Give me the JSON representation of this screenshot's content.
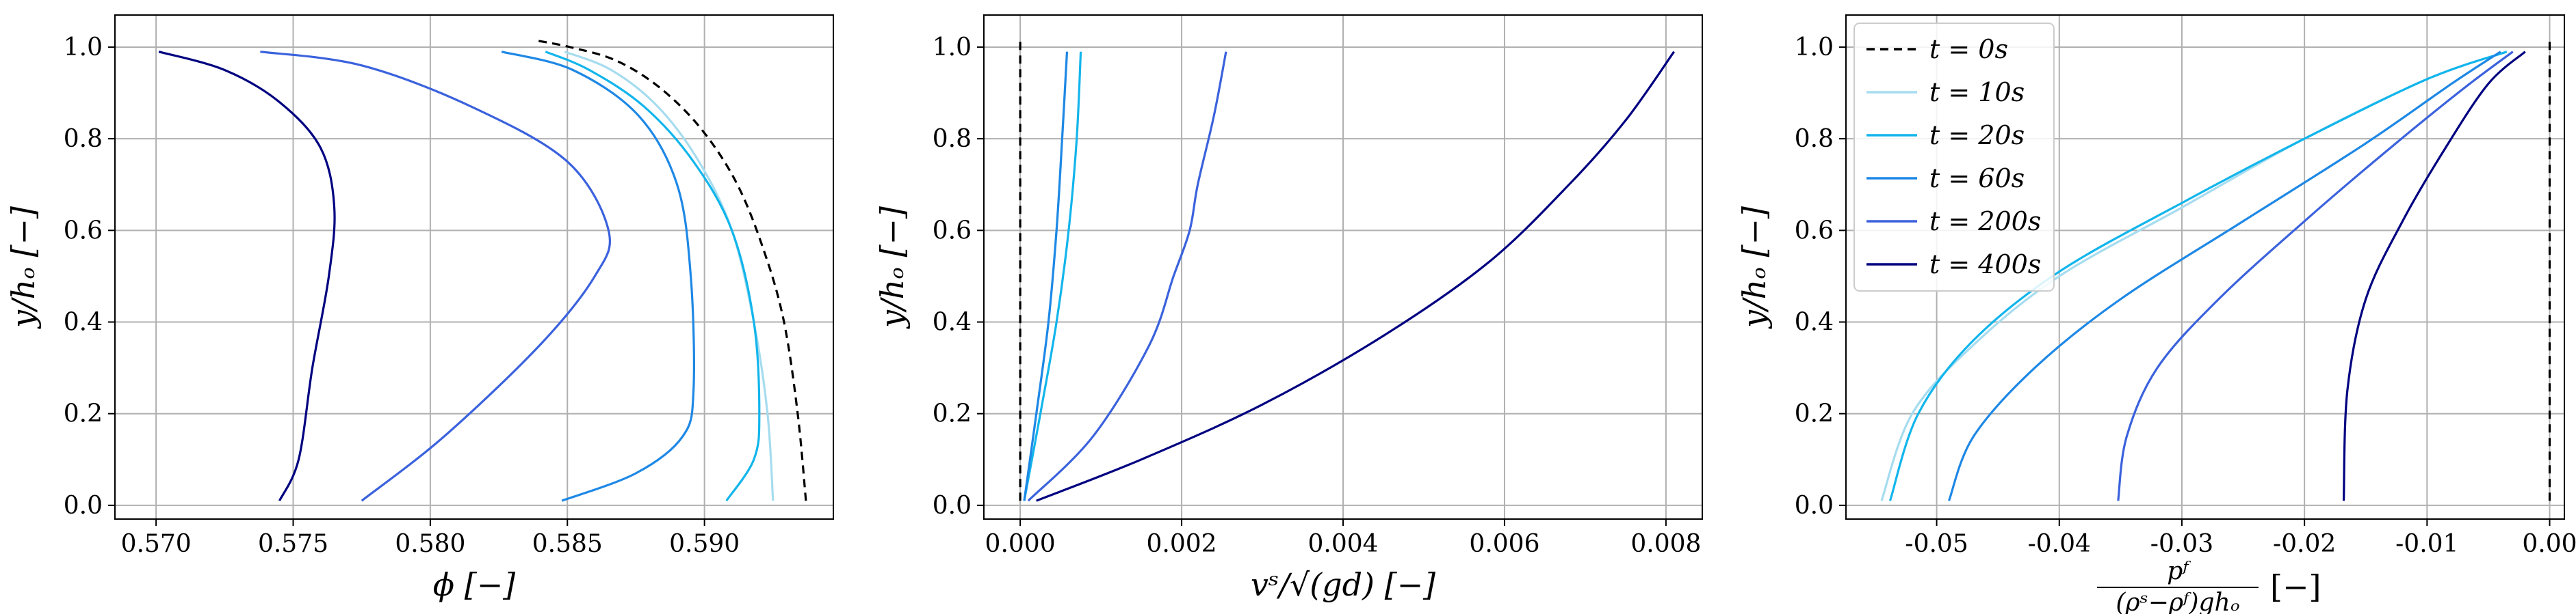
{
  "chart_data": [
    {
      "type": "line",
      "xlabel": "ϕ [−]",
      "ylabel": "y/hₒ [−]",
      "xlim": [
        0.5685,
        0.5947
      ],
      "ylim": [
        -0.03,
        1.07
      ],
      "xticks": [
        0.57,
        0.575,
        0.58,
        0.585,
        0.59
      ],
      "xtick_labels": [
        "0.570",
        "0.575",
        "0.580",
        "0.585",
        "0.590"
      ],
      "yticks": [
        0.0,
        0.2,
        0.4,
        0.6,
        0.8,
        1.0
      ],
      "ytick_labels": [
        "0.0",
        "0.2",
        "0.4",
        "0.6",
        "0.8",
        "1.0"
      ],
      "grid": true,
      "legend": "none",
      "series": [
        {
          "name": "t = 0s",
          "color": "#000000",
          "dashed": true,
          "x": [
            0.5937,
            0.5934,
            0.5929,
            0.5922,
            0.5912,
            0.5899,
            0.5884,
            0.5868,
            0.5851,
            0.5838
          ],
          "y": [
            0.01,
            0.2,
            0.4,
            0.55,
            0.7,
            0.82,
            0.91,
            0.97,
            1.0,
            1.015
          ]
        },
        {
          "name": "t = 10s",
          "color": "#a6dcef",
          "x": [
            0.5925,
            0.5923,
            0.5918,
            0.591,
            0.5898,
            0.5883,
            0.5866,
            0.5849
          ],
          "y": [
            0.01,
            0.2,
            0.4,
            0.6,
            0.75,
            0.87,
            0.95,
            0.99
          ]
        },
        {
          "name": "t = 20s",
          "color": "#12b5ec",
          "x": [
            0.5908,
            0.5918,
            0.592,
            0.5918,
            0.591,
            0.5896,
            0.5878,
            0.5858,
            0.5842
          ],
          "y": [
            0.01,
            0.1,
            0.2,
            0.4,
            0.6,
            0.75,
            0.87,
            0.95,
            0.99
          ]
        },
        {
          "name": "t = 60s",
          "color": "#1e88e5",
          "x": [
            0.5848,
            0.5875,
            0.5892,
            0.5896,
            0.5895,
            0.589,
            0.5876,
            0.5852,
            0.5826
          ],
          "y": [
            0.01,
            0.07,
            0.15,
            0.25,
            0.5,
            0.7,
            0.85,
            0.95,
            0.99
          ]
        },
        {
          "name": "t = 200s",
          "color": "#3b62dd",
          "x": [
            0.5775,
            0.5805,
            0.584,
            0.586,
            0.5865,
            0.585,
            0.5815,
            0.5775,
            0.5738
          ],
          "y": [
            0.01,
            0.15,
            0.35,
            0.5,
            0.6,
            0.75,
            0.87,
            0.96,
            0.99
          ]
        },
        {
          "name": "t = 400s",
          "color": "#000080",
          "x": [
            0.5745,
            0.5752,
            0.5757,
            0.5763,
            0.5765,
            0.576,
            0.5745,
            0.5725,
            0.5701
          ],
          "y": [
            0.01,
            0.1,
            0.3,
            0.5,
            0.65,
            0.78,
            0.88,
            0.95,
            0.99
          ]
        }
      ]
    },
    {
      "type": "line",
      "xlabel": "vˢ/√(gd) [−]",
      "ylabel": "y/hₒ [−]",
      "xlim": [
        -0.00045,
        0.00845
      ],
      "ylim": [
        -0.03,
        1.07
      ],
      "xticks": [
        0.0,
        0.002,
        0.004,
        0.006,
        0.008
      ],
      "xtick_labels": [
        "0.000",
        "0.002",
        "0.004",
        "0.006",
        "0.008"
      ],
      "yticks": [
        0.0,
        0.2,
        0.4,
        0.6,
        0.8,
        1.0
      ],
      "ytick_labels": [
        "0.0",
        "0.2",
        "0.4",
        "0.6",
        "0.8",
        "1.0"
      ],
      "grid": true,
      "legend": "none",
      "series": [
        {
          "name": "t = 0s",
          "color": "#000000",
          "dashed": true,
          "x": [
            0.0,
            0.0
          ],
          "y": [
            0.01,
            1.02
          ]
        },
        {
          "name": "t = 10s",
          "color": "#a6dcef",
          "x": [
            5e-05,
            0.0002,
            0.00035,
            0.00045,
            0.00052,
            0.00058
          ],
          "y": [
            0.01,
            0.2,
            0.4,
            0.6,
            0.8,
            0.99
          ]
        },
        {
          "name": "t = 20s",
          "color": "#12b5ec",
          "x": [
            5e-05,
            0.00025,
            0.00045,
            0.0006,
            0.0007,
            0.00075
          ],
          "y": [
            0.01,
            0.2,
            0.4,
            0.6,
            0.8,
            0.99
          ]
        },
        {
          "name": "t = 60s",
          "color": "#1e88e5",
          "x": [
            5e-05,
            0.0002,
            0.00035,
            0.00045,
            0.00052,
            0.00058
          ],
          "y": [
            0.01,
            0.2,
            0.4,
            0.6,
            0.8,
            0.99
          ]
        },
        {
          "name": "t = 200s",
          "color": "#3b62dd",
          "x": [
            0.0001,
            0.0009,
            0.0016,
            0.0019,
            0.0021,
            0.0022,
            0.0024,
            0.00255
          ],
          "y": [
            0.01,
            0.15,
            0.35,
            0.5,
            0.6,
            0.7,
            0.85,
            0.99
          ]
        },
        {
          "name": "t = 400s",
          "color": "#000080",
          "x": [
            0.0002,
            0.0015,
            0.003,
            0.0045,
            0.0058,
            0.0068,
            0.0075,
            0.0081
          ],
          "y": [
            0.01,
            0.1,
            0.22,
            0.37,
            0.53,
            0.7,
            0.84,
            0.99
          ]
        }
      ]
    },
    {
      "type": "line",
      "xlabel_parts": {
        "numerator": "pᶠ",
        "denominator": "(ρˢ−ρᶠ)ghₒ",
        "unit": "[−]"
      },
      "ylabel": "y/hₒ [−]",
      "xlim": [
        -0.0574,
        0.0012
      ],
      "ylim": [
        -0.03,
        1.07
      ],
      "xticks": [
        -0.05,
        -0.04,
        -0.03,
        -0.02,
        -0.01,
        0.0
      ],
      "xtick_labels": [
        "-0.05",
        "-0.04",
        "-0.03",
        "-0.02",
        "-0.01",
        "0.00"
      ],
      "yticks": [
        0.0,
        0.2,
        0.4,
        0.6,
        0.8,
        1.0
      ],
      "ytick_labels": [
        "0.0",
        "0.2",
        "0.4",
        "0.6",
        "0.8",
        "1.0"
      ],
      "grid": true,
      "legend": "upper-left",
      "legend_entries": [
        "t = 0s",
        "t = 10s",
        "t = 20s",
        "t = 60s",
        "t = 200s",
        "t = 400s"
      ],
      "series": [
        {
          "name": "t = 0s",
          "color": "#000000",
          "dashed": true,
          "x": [
            0.0,
            0.0
          ],
          "y": [
            0.01,
            1.02
          ]
        },
        {
          "name": "t = 10s",
          "color": "#a6dcef",
          "x": [
            -0.0545,
            -0.052,
            -0.047,
            -0.04,
            -0.03,
            -0.02,
            -0.01,
            -0.0035
          ],
          "y": [
            0.01,
            0.2,
            0.35,
            0.5,
            0.65,
            0.8,
            0.93,
            0.99
          ]
        },
        {
          "name": "t = 20s",
          "color": "#12b5ec",
          "x": [
            -0.0538,
            -0.0515,
            -0.047,
            -0.04,
            -0.03,
            -0.02,
            -0.01,
            -0.0035
          ],
          "y": [
            0.01,
            0.2,
            0.36,
            0.51,
            0.66,
            0.8,
            0.93,
            0.99
          ]
        },
        {
          "name": "t = 60s",
          "color": "#1e88e5",
          "x": [
            -0.049,
            -0.047,
            -0.042,
            -0.035,
            -0.025,
            -0.015,
            -0.008,
            -0.004
          ],
          "y": [
            0.01,
            0.15,
            0.3,
            0.45,
            0.62,
            0.79,
            0.92,
            0.99
          ]
        },
        {
          "name": "t = 200s",
          "color": "#3b62dd",
          "x": [
            -0.0352,
            -0.0345,
            -0.032,
            -0.027,
            -0.02,
            -0.013,
            -0.007,
            -0.003
          ],
          "y": [
            0.01,
            0.15,
            0.3,
            0.45,
            0.62,
            0.78,
            0.91,
            0.99
          ]
        },
        {
          "name": "t = 400s",
          "color": "#000080",
          "x": [
            -0.0168,
            -0.0165,
            -0.015,
            -0.012,
            -0.0085,
            -0.005,
            -0.002
          ],
          "y": [
            0.01,
            0.25,
            0.45,
            0.62,
            0.78,
            0.92,
            0.99
          ]
        }
      ]
    }
  ]
}
